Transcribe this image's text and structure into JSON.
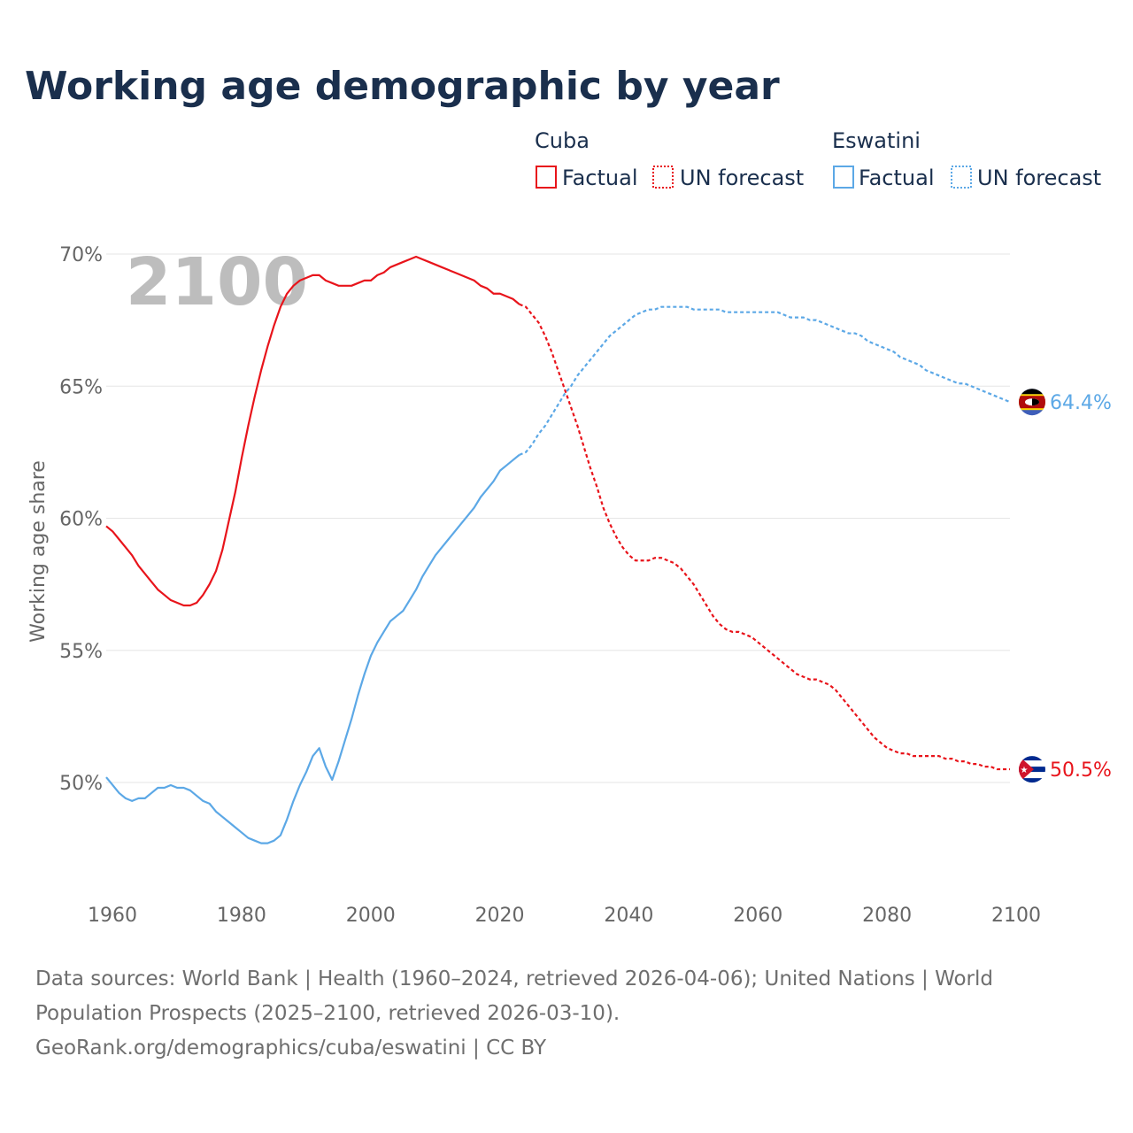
{
  "title": "Working age demographic by year",
  "year_watermark": "2100",
  "legend": {
    "groups": [
      {
        "name": "Cuba",
        "color": "#e8141b",
        "items": [
          {
            "label": "Factual",
            "style": "solid"
          },
          {
            "label": "UN forecast",
            "style": "dotted"
          }
        ]
      },
      {
        "name": "Eswatini",
        "color": "#5ca8e6",
        "items": [
          {
            "label": "Factual",
            "style": "solid"
          },
          {
            "label": "UN forecast",
            "style": "dotted"
          }
        ]
      }
    ]
  },
  "footer": {
    "line1": "Data sources: World Bank | Health (1960–2024, retrieved 2026-04-06); United Nations | World",
    "line2": "Population Prospects (2025–2100, retrieved 2026-03-10).",
    "line3": "GeoRank.org/demographics/cuba/eswatini | CC BY"
  },
  "chart_data": {
    "type": "line",
    "title": "Working age demographic by year",
    "xlabel": "",
    "ylabel": "Working age share",
    "xlim": [
      1960,
      2100
    ],
    "ylim": [
      46,
      70
    ],
    "x_ticks": [
      1960,
      1980,
      2000,
      2020,
      2040,
      2060,
      2080,
      2100
    ],
    "y_ticks": [
      50,
      55,
      60,
      65,
      70
    ],
    "y_tick_labels": [
      "50%",
      "55%",
      "60%",
      "65%",
      "70%"
    ],
    "grid": true,
    "forecast_start": 2024,
    "series": [
      {
        "name": "Cuba",
        "color": "#e8141b",
        "end_label": "50.5%",
        "flag": "cuba-flag-icon",
        "points": [
          [
            1960,
            59.7
          ],
          [
            1961,
            59.5
          ],
          [
            1962,
            59.2
          ],
          [
            1963,
            58.9
          ],
          [
            1964,
            58.6
          ],
          [
            1965,
            58.2
          ],
          [
            1966,
            57.9
          ],
          [
            1967,
            57.6
          ],
          [
            1968,
            57.3
          ],
          [
            1969,
            57.1
          ],
          [
            1970,
            56.9
          ],
          [
            1971,
            56.8
          ],
          [
            1972,
            56.7
          ],
          [
            1973,
            56.7
          ],
          [
            1974,
            56.8
          ],
          [
            1975,
            57.1
          ],
          [
            1976,
            57.5
          ],
          [
            1977,
            58.0
          ],
          [
            1978,
            58.8
          ],
          [
            1979,
            59.9
          ],
          [
            1980,
            61.0
          ],
          [
            1981,
            62.3
          ],
          [
            1982,
            63.5
          ],
          [
            1983,
            64.6
          ],
          [
            1984,
            65.6
          ],
          [
            1985,
            66.5
          ],
          [
            1986,
            67.3
          ],
          [
            1987,
            68.0
          ],
          [
            1988,
            68.5
          ],
          [
            1989,
            68.8
          ],
          [
            1990,
            69.0
          ],
          [
            1991,
            69.1
          ],
          [
            1992,
            69.2
          ],
          [
            1993,
            69.2
          ],
          [
            1994,
            69.0
          ],
          [
            1995,
            68.9
          ],
          [
            1996,
            68.8
          ],
          [
            1997,
            68.8
          ],
          [
            1998,
            68.8
          ],
          [
            1999,
            68.9
          ],
          [
            2000,
            69.0
          ],
          [
            2001,
            69.0
          ],
          [
            2002,
            69.2
          ],
          [
            2003,
            69.3
          ],
          [
            2004,
            69.5
          ],
          [
            2005,
            69.6
          ],
          [
            2006,
            69.7
          ],
          [
            2007,
            69.8
          ],
          [
            2008,
            69.9
          ],
          [
            2009,
            69.8
          ],
          [
            2010,
            69.7
          ],
          [
            2011,
            69.6
          ],
          [
            2012,
            69.5
          ],
          [
            2013,
            69.4
          ],
          [
            2014,
            69.3
          ],
          [
            2015,
            69.2
          ],
          [
            2016,
            69.1
          ],
          [
            2017,
            69.0
          ],
          [
            2018,
            68.8
          ],
          [
            2019,
            68.7
          ],
          [
            2020,
            68.5
          ],
          [
            2021,
            68.5
          ],
          [
            2022,
            68.4
          ],
          [
            2023,
            68.3
          ],
          [
            2024,
            68.1
          ],
          [
            2025,
            68.0
          ],
          [
            2026,
            67.7
          ],
          [
            2027,
            67.4
          ],
          [
            2028,
            66.9
          ],
          [
            2029,
            66.3
          ],
          [
            2030,
            65.6
          ],
          [
            2031,
            64.9
          ],
          [
            2032,
            64.2
          ],
          [
            2033,
            63.5
          ],
          [
            2034,
            62.7
          ],
          [
            2035,
            61.9
          ],
          [
            2036,
            61.2
          ],
          [
            2037,
            60.4
          ],
          [
            2038,
            59.8
          ],
          [
            2039,
            59.3
          ],
          [
            2040,
            58.9
          ],
          [
            2041,
            58.6
          ],
          [
            2042,
            58.4
          ],
          [
            2043,
            58.4
          ],
          [
            2044,
            58.4
          ],
          [
            2045,
            58.5
          ],
          [
            2046,
            58.5
          ],
          [
            2047,
            58.4
          ],
          [
            2048,
            58.3
          ],
          [
            2049,
            58.1
          ],
          [
            2050,
            57.8
          ],
          [
            2051,
            57.5
          ],
          [
            2052,
            57.1
          ],
          [
            2053,
            56.7
          ],
          [
            2054,
            56.3
          ],
          [
            2055,
            56.0
          ],
          [
            2056,
            55.8
          ],
          [
            2057,
            55.7
          ],
          [
            2058,
            55.7
          ],
          [
            2059,
            55.6
          ],
          [
            2060,
            55.5
          ],
          [
            2061,
            55.3
          ],
          [
            2062,
            55.1
          ],
          [
            2063,
            54.9
          ],
          [
            2064,
            54.7
          ],
          [
            2065,
            54.5
          ],
          [
            2066,
            54.3
          ],
          [
            2067,
            54.1
          ],
          [
            2068,
            54.0
          ],
          [
            2069,
            53.9
          ],
          [
            2070,
            53.9
          ],
          [
            2071,
            53.8
          ],
          [
            2072,
            53.7
          ],
          [
            2073,
            53.5
          ],
          [
            2074,
            53.2
          ],
          [
            2075,
            52.9
          ],
          [
            2076,
            52.6
          ],
          [
            2077,
            52.3
          ],
          [
            2078,
            52.0
          ],
          [
            2079,
            51.7
          ],
          [
            2080,
            51.5
          ],
          [
            2081,
            51.3
          ],
          [
            2082,
            51.2
          ],
          [
            2083,
            51.1
          ],
          [
            2084,
            51.1
          ],
          [
            2085,
            51.0
          ],
          [
            2086,
            51.0
          ],
          [
            2087,
            51.0
          ],
          [
            2088,
            51.0
          ],
          [
            2089,
            51.0
          ],
          [
            2090,
            50.9
          ],
          [
            2091,
            50.9
          ],
          [
            2092,
            50.8
          ],
          [
            2093,
            50.8
          ],
          [
            2094,
            50.7
          ],
          [
            2095,
            50.7
          ],
          [
            2096,
            50.6
          ],
          [
            2097,
            50.6
          ],
          [
            2098,
            50.5
          ],
          [
            2099,
            50.5
          ],
          [
            2100,
            50.5
          ]
        ]
      },
      {
        "name": "Eswatini",
        "color": "#5ca8e6",
        "end_label": "64.4%",
        "flag": "eswatini-flag-icon",
        "points": [
          [
            1960,
            50.2
          ],
          [
            1961,
            49.9
          ],
          [
            1962,
            49.6
          ],
          [
            1963,
            49.4
          ],
          [
            1964,
            49.3
          ],
          [
            1965,
            49.4
          ],
          [
            1966,
            49.4
          ],
          [
            1967,
            49.6
          ],
          [
            1968,
            49.8
          ],
          [
            1969,
            49.8
          ],
          [
            1970,
            49.9
          ],
          [
            1971,
            49.8
          ],
          [
            1972,
            49.8
          ],
          [
            1973,
            49.7
          ],
          [
            1974,
            49.5
          ],
          [
            1975,
            49.3
          ],
          [
            1976,
            49.2
          ],
          [
            1977,
            48.9
          ],
          [
            1978,
            48.7
          ],
          [
            1979,
            48.5
          ],
          [
            1980,
            48.3
          ],
          [
            1981,
            48.1
          ],
          [
            1982,
            47.9
          ],
          [
            1983,
            47.8
          ],
          [
            1984,
            47.7
          ],
          [
            1985,
            47.7
          ],
          [
            1986,
            47.8
          ],
          [
            1987,
            48.0
          ],
          [
            1988,
            48.6
          ],
          [
            1989,
            49.3
          ],
          [
            1990,
            49.9
          ],
          [
            1991,
            50.4
          ],
          [
            1992,
            51.0
          ],
          [
            1993,
            51.3
          ],
          [
            1994,
            50.6
          ],
          [
            1995,
            50.1
          ],
          [
            1996,
            50.8
          ],
          [
            1997,
            51.6
          ],
          [
            1998,
            52.4
          ],
          [
            1999,
            53.3
          ],
          [
            2000,
            54.1
          ],
          [
            2001,
            54.8
          ],
          [
            2002,
            55.3
          ],
          [
            2003,
            55.7
          ],
          [
            2004,
            56.1
          ],
          [
            2005,
            56.3
          ],
          [
            2006,
            56.5
          ],
          [
            2007,
            56.9
          ],
          [
            2008,
            57.3
          ],
          [
            2009,
            57.8
          ],
          [
            2010,
            58.2
          ],
          [
            2011,
            58.6
          ],
          [
            2012,
            58.9
          ],
          [
            2013,
            59.2
          ],
          [
            2014,
            59.5
          ],
          [
            2015,
            59.8
          ],
          [
            2016,
            60.1
          ],
          [
            2017,
            60.4
          ],
          [
            2018,
            60.8
          ],
          [
            2019,
            61.1
          ],
          [
            2020,
            61.4
          ],
          [
            2021,
            61.8
          ],
          [
            2022,
            62.0
          ],
          [
            2023,
            62.2
          ],
          [
            2024,
            62.4
          ],
          [
            2025,
            62.5
          ],
          [
            2026,
            62.8
          ],
          [
            2027,
            63.2
          ],
          [
            2028,
            63.5
          ],
          [
            2029,
            63.9
          ],
          [
            2030,
            64.3
          ],
          [
            2031,
            64.7
          ],
          [
            2032,
            65.0
          ],
          [
            2033,
            65.4
          ],
          [
            2034,
            65.7
          ],
          [
            2035,
            66.0
          ],
          [
            2036,
            66.3
          ],
          [
            2037,
            66.6
          ],
          [
            2038,
            66.9
          ],
          [
            2039,
            67.1
          ],
          [
            2040,
            67.3
          ],
          [
            2041,
            67.5
          ],
          [
            2042,
            67.7
          ],
          [
            2043,
            67.8
          ],
          [
            2044,
            67.9
          ],
          [
            2045,
            67.9
          ],
          [
            2046,
            68.0
          ],
          [
            2047,
            68.0
          ],
          [
            2048,
            68.0
          ],
          [
            2049,
            68.0
          ],
          [
            2050,
            68.0
          ],
          [
            2051,
            67.9
          ],
          [
            2052,
            67.9
          ],
          [
            2053,
            67.9
          ],
          [
            2054,
            67.9
          ],
          [
            2055,
            67.9
          ],
          [
            2056,
            67.8
          ],
          [
            2057,
            67.8
          ],
          [
            2058,
            67.8
          ],
          [
            2059,
            67.8
          ],
          [
            2060,
            67.8
          ],
          [
            2061,
            67.8
          ],
          [
            2062,
            67.8
          ],
          [
            2063,
            67.8
          ],
          [
            2064,
            67.8
          ],
          [
            2065,
            67.7
          ],
          [
            2066,
            67.6
          ],
          [
            2067,
            67.6
          ],
          [
            2068,
            67.6
          ],
          [
            2069,
            67.5
          ],
          [
            2070,
            67.5
          ],
          [
            2071,
            67.4
          ],
          [
            2072,
            67.3
          ],
          [
            2073,
            67.2
          ],
          [
            2074,
            67.1
          ],
          [
            2075,
            67.0
          ],
          [
            2076,
            67.0
          ],
          [
            2077,
            66.9
          ],
          [
            2078,
            66.7
          ],
          [
            2079,
            66.6
          ],
          [
            2080,
            66.5
          ],
          [
            2081,
            66.4
          ],
          [
            2082,
            66.3
          ],
          [
            2083,
            66.1
          ],
          [
            2084,
            66.0
          ],
          [
            2085,
            65.9
          ],
          [
            2086,
            65.8
          ],
          [
            2087,
            65.6
          ],
          [
            2088,
            65.5
          ],
          [
            2089,
            65.4
          ],
          [
            2090,
            65.3
          ],
          [
            2091,
            65.2
          ],
          [
            2092,
            65.1
          ],
          [
            2093,
            65.1
          ],
          [
            2094,
            65.0
          ],
          [
            2095,
            64.9
          ],
          [
            2096,
            64.8
          ],
          [
            2097,
            64.7
          ],
          [
            2098,
            64.6
          ],
          [
            2099,
            64.5
          ],
          [
            2100,
            64.4
          ]
        ]
      }
    ]
  }
}
